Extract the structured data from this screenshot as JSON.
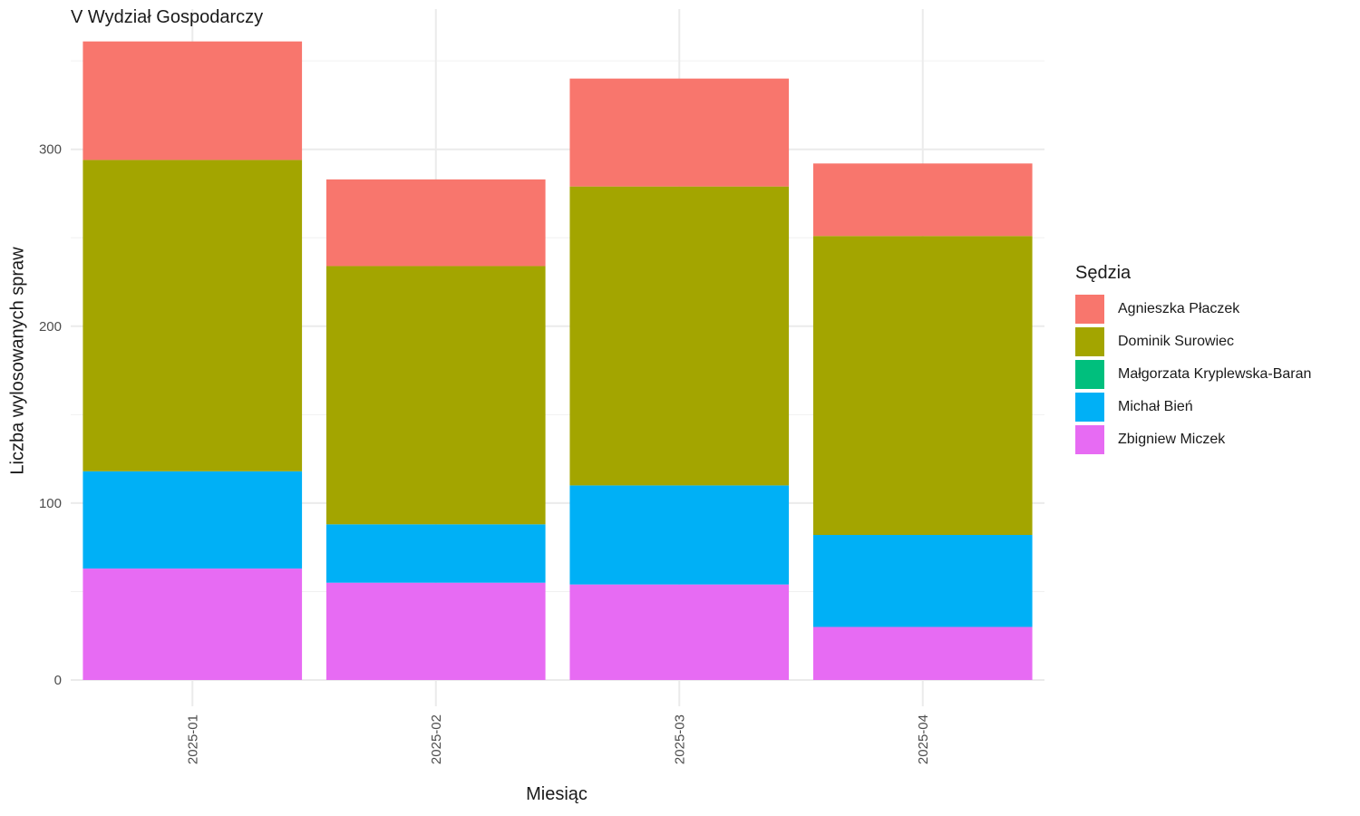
{
  "chart_data": {
    "type": "bar",
    "stacked": true,
    "title": "V Wydział Gospodarczy",
    "xlabel": "Miesiąc",
    "ylabel": "Liczba wylosowanych spraw",
    "categories": [
      "2025-01",
      "2025-02",
      "2025-03",
      "2025-04"
    ],
    "ylim": [
      0,
      378
    ],
    "yticks": [
      0,
      100,
      200,
      300
    ],
    "grid": true,
    "legend_title": "Sędzia",
    "legend_position": "right",
    "series": [
      {
        "name": "Zbigniew Miczek",
        "color": "#E76BF3",
        "values": [
          63,
          55,
          54,
          30
        ]
      },
      {
        "name": "Michał Bień",
        "color": "#00B0F6",
        "values": [
          55,
          33,
          56,
          52
        ]
      },
      {
        "name": "Małgorzata Kryplewska-Baran",
        "color": "#00BF7D",
        "values": [
          0,
          0,
          0,
          0
        ]
      },
      {
        "name": "Dominik Surowiec",
        "color": "#A3A500",
        "values": [
          176,
          146,
          169,
          169
        ]
      },
      {
        "name": "Agnieszka Płaczek",
        "color": "#F8766D",
        "values": [
          67,
          49,
          61,
          41
        ]
      }
    ],
    "legend_order": [
      "Agnieszka Płaczek",
      "Dominik Surowiec",
      "Małgorzata Kryplewska-Baran",
      "Michał Bień",
      "Zbigniew Miczek"
    ]
  }
}
